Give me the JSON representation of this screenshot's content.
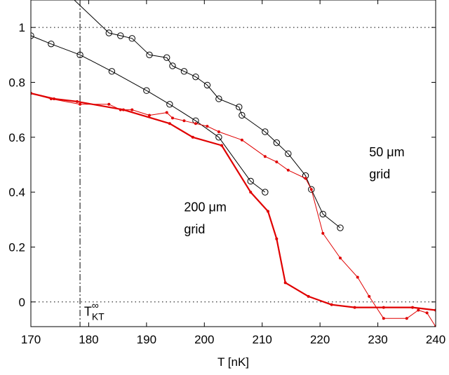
{
  "chart_data": {
    "type": "line",
    "title": "",
    "xlabel": "T [nK]",
    "ylabel": "",
    "xlim": [
      170,
      240
    ],
    "ylim": [
      -0.09,
      1.1
    ],
    "xticks": [
      170,
      180,
      190,
      200,
      210,
      220,
      230,
      240
    ],
    "yticks": [
      0,
      0.2,
      0.4,
      0.6,
      0.8,
      1
    ],
    "grid": false,
    "reference_lines": [
      {
        "axis": "y",
        "value": 1,
        "style": "dotted"
      },
      {
        "axis": "y",
        "value": 0,
        "style": "dotted"
      },
      {
        "axis": "x",
        "value": 178.5,
        "style": "dash-dot"
      }
    ],
    "annotations": [
      {
        "text": "50 μm",
        "x": 228.5,
        "y": 0.53
      },
      {
        "text": "grid",
        "x": 228.5,
        "y": 0.45
      },
      {
        "text": "200 μm",
        "x": 196.5,
        "y": 0.33
      },
      {
        "text": "grid",
        "x": 196.5,
        "y": 0.25
      },
      {
        "text": "T",
        "x": 179.2,
        "y": -0.05,
        "sub": "KT",
        "sup": "∞"
      }
    ],
    "series": [
      {
        "color": "#000000",
        "marker": "circle",
        "linewidth": 1,
        "x": [
          174,
          183.5,
          185.5,
          187.5,
          190.5,
          193.5,
          194.5,
          196.5,
          198.5,
          200.5,
          202.5,
          206,
          206.5,
          210.5,
          212.5,
          214.5,
          217.5,
          218.5,
          220.5,
          223.5
        ],
        "y": [
          1.17,
          0.98,
          0.97,
          0.96,
          0.9,
          0.89,
          0.86,
          0.84,
          0.82,
          0.79,
          0.74,
          0.71,
          0.68,
          0.62,
          0.58,
          0.54,
          0.46,
          0.41,
          0.32,
          0.27
        ]
      },
      {
        "color": "#000000",
        "marker": "circle",
        "linewidth": 1,
        "x": [
          170,
          173.5,
          178.5,
          184,
          190,
          194,
          198.5,
          202.5,
          208,
          210.5
        ],
        "y": [
          0.97,
          0.94,
          0.9,
          0.84,
          0.77,
          0.72,
          0.66,
          0.6,
          0.44,
          0.4
        ]
      },
      {
        "color": "#e00000",
        "marker": "dot",
        "linewidth": 1,
        "x": [
          170,
          173.5,
          178.5,
          183.5,
          185.5,
          187.5,
          190.5,
          193.5,
          194.5,
          196.5,
          198.5,
          200.5,
          202.5,
          206.5,
          210.5,
          212.5,
          214.5,
          217.5,
          218.5,
          220.5,
          223.5,
          226.5,
          228.5,
          231,
          235,
          237,
          238.5,
          240
        ],
        "y": [
          0.76,
          0.74,
          0.72,
          0.72,
          0.7,
          0.7,
          0.68,
          0.69,
          0.67,
          0.66,
          0.65,
          0.64,
          0.62,
          0.59,
          0.53,
          0.51,
          0.48,
          0.45,
          0.41,
          0.25,
          0.16,
          0.09,
          0.02,
          -0.06,
          -0.06,
          -0.03,
          -0.04,
          -0.09
        ]
      },
      {
        "color": "#e00000",
        "marker": "dot",
        "linewidth": 2.2,
        "x": [
          170,
          174,
          178,
          186,
          194,
          198,
          203,
          208,
          211,
          212.5,
          214,
          218,
          222,
          226,
          231,
          236,
          240
        ],
        "y": [
          0.76,
          0.74,
          0.73,
          0.7,
          0.65,
          0.6,
          0.57,
          0.4,
          0.33,
          0.23,
          0.07,
          0.02,
          -0.01,
          -0.02,
          -0.02,
          -0.02,
          -0.03
        ]
      }
    ]
  }
}
